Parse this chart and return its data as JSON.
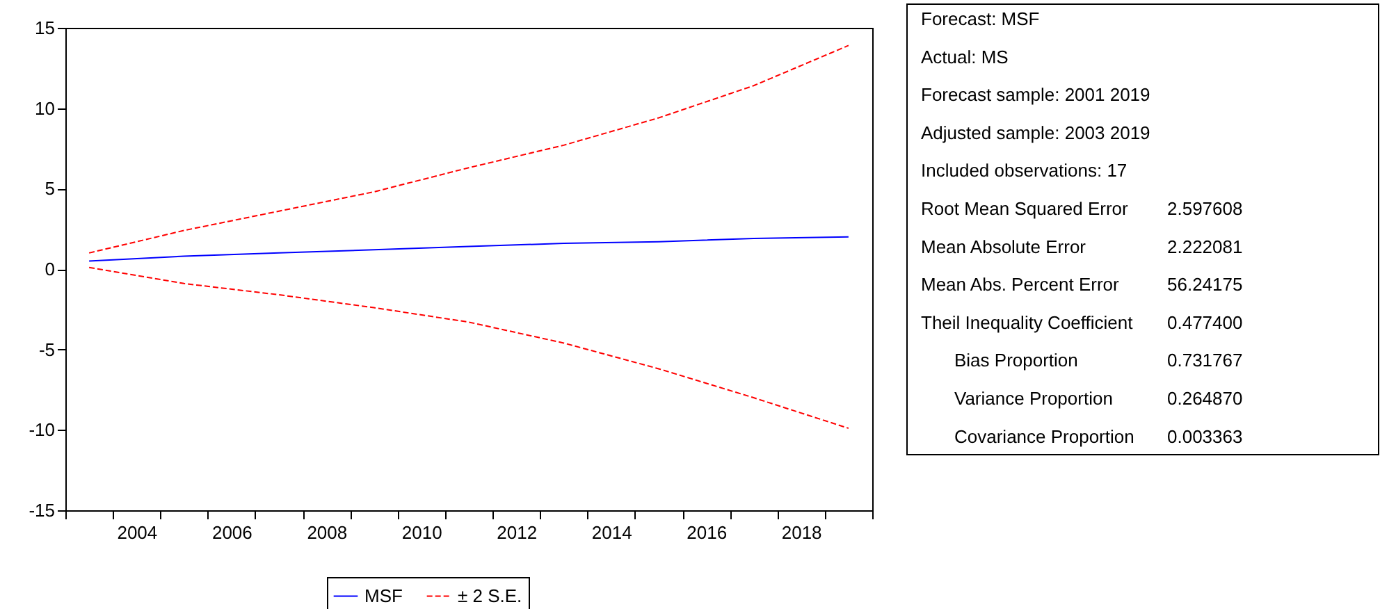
{
  "chart_data": {
    "type": "line",
    "x": [
      2003,
      2005,
      2007,
      2009,
      2011,
      2013,
      2015,
      2017,
      2019
    ],
    "xlim": [
      2002.5,
      2019.5
    ],
    "xticks": [
      {
        "value": 2002.5,
        "label": null
      },
      {
        "value": 2003.5,
        "label": null
      },
      2004,
      {
        "value": 2004.5,
        "label": null
      },
      {
        "value": 2005.5,
        "label": null
      },
      2006,
      {
        "value": 2006.5,
        "label": null
      },
      {
        "value": 2007.5,
        "label": null
      },
      2008,
      {
        "value": 2008.5,
        "label": null
      },
      {
        "value": 2009.5,
        "label": null
      },
      2010,
      {
        "value": 2010.5,
        "label": null
      },
      {
        "value": 2011.5,
        "label": null
      },
      2012,
      {
        "value": 2012.5,
        "label": null
      },
      {
        "value": 2013.5,
        "label": null
      },
      2014,
      {
        "value": 2014.5,
        "label": null
      },
      {
        "value": 2015.5,
        "label": null
      },
      2016,
      {
        "value": 2016.5,
        "label": null
      },
      {
        "value": 2017.5,
        "label": null
      },
      2018,
      {
        "value": 2018.5,
        "label": null
      },
      {
        "value": 2019.5,
        "label": null
      }
    ],
    "ylim": [
      -15,
      15
    ],
    "yticks": [
      -15,
      -10,
      -5,
      0,
      5,
      10,
      15
    ],
    "series": [
      {
        "name": "MSF",
        "color": "#0000ff",
        "line_style": "solid",
        "values": [
          0.5,
          0.8,
          1.0,
          1.2,
          1.4,
          1.6,
          1.7,
          1.9,
          2.0
        ]
      },
      {
        "name": "± 2 S.E.",
        "color": "#ff0000",
        "line_style": "dashed",
        "values": [
          1.0,
          2.4,
          3.6,
          4.8,
          6.3,
          7.7,
          9.4,
          11.4,
          13.9
        ]
      },
      {
        "color": "#ff0000",
        "line_style": "dashed",
        "values": [
          0.1,
          -0.9,
          -1.6,
          -2.4,
          -3.3,
          -4.6,
          -6.2,
          -8.0,
          -9.9
        ]
      }
    ],
    "legend": "bottom",
    "grid": false,
    "marker": "none",
    "annotations": [
      "Forecast: MSF",
      "Actual: MS",
      "Forecast sample: 2001 2019",
      "Adjusted sample: 2003 2019",
      "Included observations: 17",
      "Root Mean Squared Error 2.597608",
      "Mean Absolute Error 2.222081",
      "Mean Abs. Percent Error 56.24175",
      "Theil Inequality Coefficient 0.477400",
      "    Bias Proportion 0.731767",
      "    Variance Proportion 0.264870",
      "    Covariance Proportion 0.003363"
    ]
  }
}
